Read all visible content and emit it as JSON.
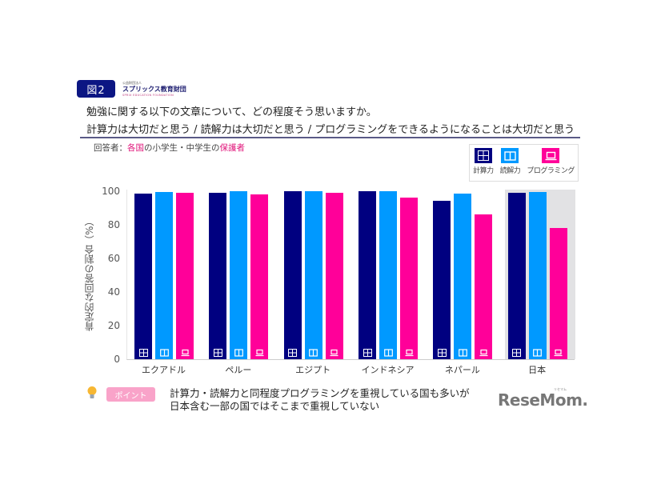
{
  "header": {
    "figure_label": "図2",
    "org_small": "公益財団法人",
    "org_name": "スプリックス教育財団",
    "org_en": "SPRIX EDUCATION FOUNDATION",
    "question": "勉強に関する以下の文章について、どの程度そう思いますか。",
    "statements": "計算力は大切だと思う / 読解力は大切だと思う / プログラミングをできるようになることは大切だと思う",
    "respondent_prefix": "回答者：",
    "respondent_hl1": "各国",
    "respondent_mid": "の小学生・中学生の",
    "respondent_hl2": "保護者"
  },
  "legend": [
    {
      "label": "計算力",
      "icon": "calculator-icon",
      "color": "#000080"
    },
    {
      "label": "読解力",
      "icon": "book-icon",
      "color": "#0099ff"
    },
    {
      "label": "プログラミング",
      "icon": "laptop-icon",
      "color": "#ff0099"
    }
  ],
  "chart_data": {
    "type": "bar",
    "title": "勉強に関する以下の文章について、どの程度そう思いますか。",
    "xlabel": "",
    "ylabel": "肯定的な回答の割合（%）",
    "ylim": [
      0,
      100
    ],
    "yticks": [
      0,
      20,
      40,
      60,
      80,
      100
    ],
    "categories": [
      "エクアドル",
      "ペルー",
      "エジプト",
      "インドネシア",
      "ネパール",
      "日本"
    ],
    "series": [
      {
        "name": "計算力",
        "color": "#000080",
        "values": [
          98.5,
          99,
          100,
          100,
          94.5,
          99
        ]
      },
      {
        "name": "読解力",
        "color": "#0099ff",
        "values": [
          99.5,
          100,
          100,
          100,
          98.5,
          99.7
        ]
      },
      {
        "name": "プログラミング",
        "color": "#ff0099",
        "values": [
          99,
          98,
          99,
          96,
          86,
          78
        ]
      }
    ],
    "highlighted_category": "日本",
    "grid": false,
    "legend_position": "top-right"
  },
  "footer": {
    "point_label": "ポイント",
    "summary_line1": "計算力・読解力と同程度プログラミングを重視している国も多いが",
    "summary_line2": "日本含む一部の国ではそこまで重視していない",
    "logo": "ReseMom.",
    "logo_ruby": "リセマム"
  }
}
